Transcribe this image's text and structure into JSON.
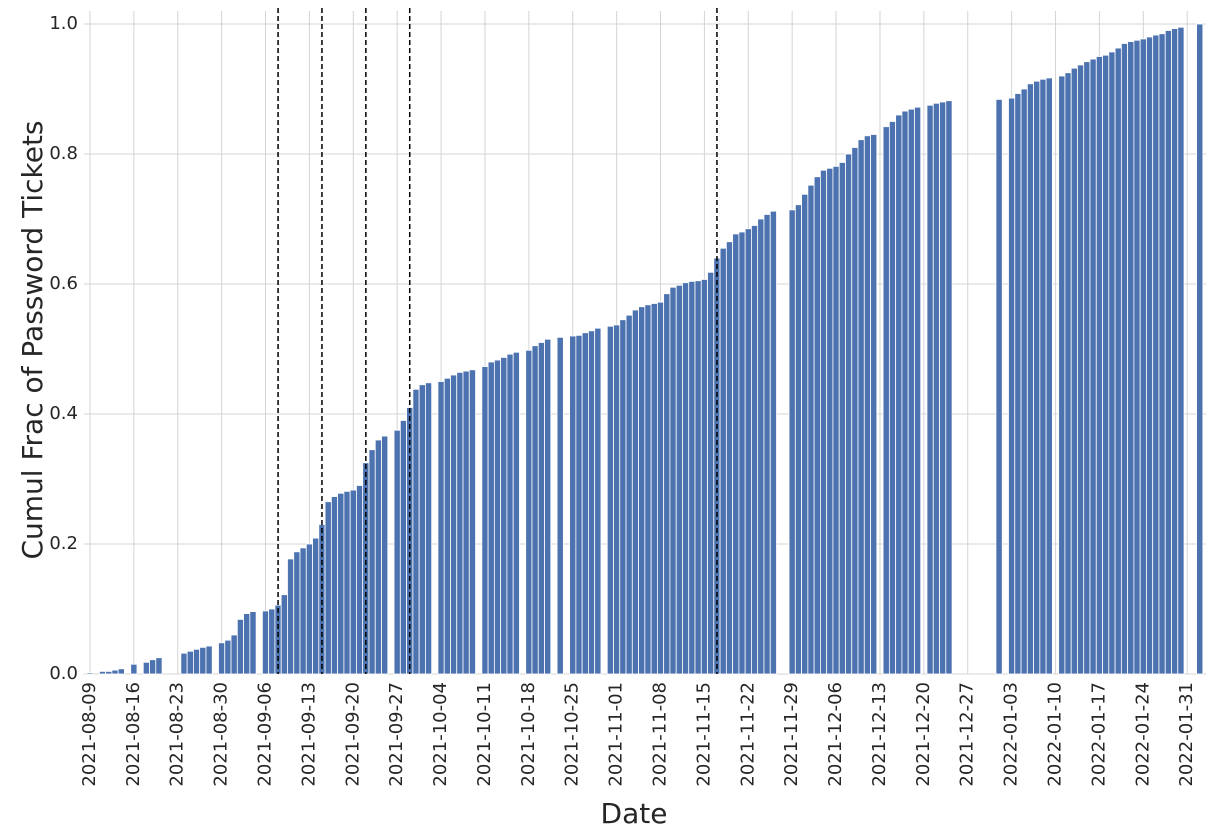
{
  "chart_data": {
    "type": "bar",
    "x_label": "Date",
    "y_label": "Cumul Frac of Password Tickets",
    "color": "#4c72b0",
    "grid": true,
    "x": [
      "2021-08-09",
      "2021-08-11",
      "2021-08-12",
      "2021-08-13",
      "2021-08-14",
      "2021-08-16",
      "2021-08-18",
      "2021-08-19",
      "2021-08-20",
      "2021-08-24",
      "2021-08-25",
      "2021-08-26",
      "2021-08-27",
      "2021-08-28",
      "2021-08-30",
      "2021-08-31",
      "2021-09-01",
      "2021-09-02",
      "2021-09-03",
      "2021-09-04",
      "2021-09-06",
      "2021-09-07",
      "2021-09-08",
      "2021-09-09",
      "2021-09-10",
      "2021-09-11",
      "2021-09-12",
      "2021-09-13",
      "2021-09-14",
      "2021-09-15",
      "2021-09-16",
      "2021-09-17",
      "2021-09-18",
      "2021-09-19",
      "2021-09-20",
      "2021-09-21",
      "2021-09-22",
      "2021-09-23",
      "2021-09-24",
      "2021-09-25",
      "2021-09-27",
      "2021-09-28",
      "2021-09-29",
      "2021-09-30",
      "2021-10-01",
      "2021-10-02",
      "2021-10-04",
      "2021-10-05",
      "2021-10-06",
      "2021-10-07",
      "2021-10-08",
      "2021-10-09",
      "2021-10-11",
      "2021-10-12",
      "2021-10-13",
      "2021-10-14",
      "2021-10-15",
      "2021-10-16",
      "2021-10-18",
      "2021-10-19",
      "2021-10-20",
      "2021-10-21",
      "2021-10-23",
      "2021-10-25",
      "2021-10-26",
      "2021-10-27",
      "2021-10-28",
      "2021-10-29",
      "2021-10-31",
      "2021-11-01",
      "2021-11-02",
      "2021-11-03",
      "2021-11-04",
      "2021-11-05",
      "2021-11-06",
      "2021-11-07",
      "2021-11-08",
      "2021-11-09",
      "2021-11-10",
      "2021-11-11",
      "2021-11-12",
      "2021-11-13",
      "2021-11-14",
      "2021-11-15",
      "2021-11-16",
      "2021-11-17",
      "2021-11-18",
      "2021-11-19",
      "2021-11-20",
      "2021-11-21",
      "2021-11-22",
      "2021-11-23",
      "2021-11-24",
      "2021-11-25",
      "2021-11-26",
      "2021-11-29",
      "2021-11-30",
      "2021-12-01",
      "2021-12-02",
      "2021-12-03",
      "2021-12-04",
      "2021-12-05",
      "2021-12-06",
      "2021-12-07",
      "2021-12-08",
      "2021-12-09",
      "2021-12-10",
      "2021-12-11",
      "2021-12-12",
      "2021-12-14",
      "2021-12-15",
      "2021-12-16",
      "2021-12-17",
      "2021-12-18",
      "2021-12-19",
      "2021-12-21",
      "2021-12-22",
      "2021-12-23",
      "2021-12-24",
      "2022-01-01",
      "2022-01-03",
      "2022-01-04",
      "2022-01-05",
      "2022-01-06",
      "2022-01-07",
      "2022-01-08",
      "2022-01-09",
      "2022-01-11",
      "2022-01-12",
      "2022-01-13",
      "2022-01-14",
      "2022-01-15",
      "2022-01-16",
      "2022-01-17",
      "2022-01-18",
      "2022-01-19",
      "2022-01-20",
      "2022-01-21",
      "2022-01-22",
      "2022-01-23",
      "2022-01-24",
      "2022-01-25",
      "2022-01-26",
      "2022-01-27",
      "2022-01-28",
      "2022-01-29",
      "2022-01-30",
      "2022-02-02"
    ],
    "values": [
      0.002,
      0.004,
      0.004,
      0.006,
      0.008,
      0.015,
      0.018,
      0.022,
      0.025,
      0.032,
      0.035,
      0.038,
      0.041,
      0.043,
      0.048,
      0.052,
      0.06,
      0.084,
      0.093,
      0.096,
      0.097,
      0.1,
      0.106,
      0.122,
      0.177,
      0.188,
      0.194,
      0.2,
      0.209,
      0.23,
      0.265,
      0.273,
      0.278,
      0.281,
      0.283,
      0.29,
      0.325,
      0.345,
      0.36,
      0.366,
      0.375,
      0.39,
      0.41,
      0.438,
      0.445,
      0.448,
      0.45,
      0.455,
      0.46,
      0.464,
      0.466,
      0.468,
      0.473,
      0.48,
      0.483,
      0.487,
      0.492,
      0.495,
      0.498,
      0.505,
      0.51,
      0.515,
      0.518,
      0.52,
      0.521,
      0.525,
      0.528,
      0.532,
      0.535,
      0.537,
      0.545,
      0.552,
      0.56,
      0.565,
      0.568,
      0.57,
      0.572,
      0.585,
      0.595,
      0.598,
      0.602,
      0.604,
      0.605,
      0.607,
      0.618,
      0.64,
      0.655,
      0.665,
      0.677,
      0.68,
      0.685,
      0.69,
      0.7,
      0.707,
      0.712,
      0.714,
      0.722,
      0.738,
      0.752,
      0.765,
      0.775,
      0.778,
      0.781,
      0.787,
      0.8,
      0.81,
      0.822,
      0.828,
      0.83,
      0.842,
      0.85,
      0.86,
      0.866,
      0.869,
      0.872,
      0.875,
      0.878,
      0.88,
      0.882,
      0.884,
      0.886,
      0.893,
      0.9,
      0.908,
      0.912,
      0.915,
      0.917,
      0.92,
      0.925,
      0.932,
      0.937,
      0.942,
      0.946,
      0.95,
      0.952,
      0.957,
      0.963,
      0.97,
      0.973,
      0.975,
      0.977,
      0.98,
      0.983,
      0.985,
      0.99,
      0.993,
      0.995,
      1.0
    ],
    "vlines": [
      "2021-09-08",
      "2021-09-15",
      "2021-09-22",
      "2021-09-29",
      "2021-11-17"
    ],
    "xlim": [
      "2021-08-08",
      "2022-02-03"
    ],
    "xticks": [
      "2021-08-09",
      "2021-08-16",
      "2021-08-23",
      "2021-08-30",
      "2021-09-06",
      "2021-09-13",
      "2021-09-20",
      "2021-09-27",
      "2021-10-04",
      "2021-10-11",
      "2021-10-18",
      "2021-10-25",
      "2021-11-01",
      "2021-11-08",
      "2021-11-15",
      "2021-11-22",
      "2021-11-29",
      "2021-12-06",
      "2021-12-13",
      "2021-12-20",
      "2021-12-27",
      "2022-01-03",
      "2022-01-10",
      "2022-01-17",
      "2022-01-24",
      "2022-01-31"
    ],
    "ylim": [
      0,
      1.02
    ],
    "yticks": [
      {
        "value": 0,
        "label": "0.0"
      },
      0.2,
      0.4,
      0.6,
      0.8,
      {
        "value": 1,
        "label": "1.0"
      }
    ]
  }
}
